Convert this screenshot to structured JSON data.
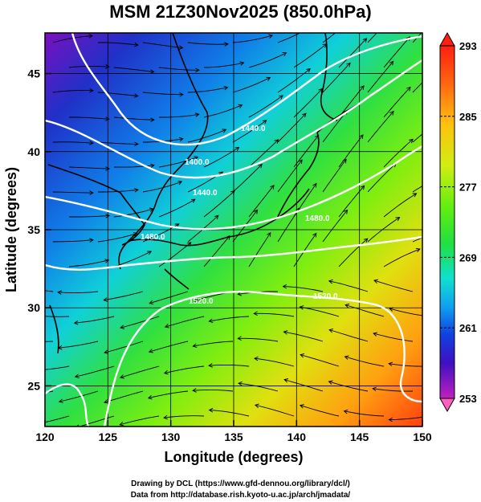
{
  "title": "MSM 21Z30Nov2025 (850.0hPa)",
  "x_axis": {
    "label": "Longitude (degrees)",
    "ticks": [
      120,
      125,
      130,
      135,
      140,
      145,
      150
    ],
    "range": [
      120,
      150
    ]
  },
  "y_axis": {
    "label": "Latitude  (degrees)",
    "ticks": [
      25,
      30,
      35,
      40,
      45
    ],
    "range": [
      22.4,
      47.6
    ]
  },
  "colorbar": {
    "ticks": [
      "253",
      "261",
      "269",
      "277",
      "285",
      "293"
    ],
    "range": [
      253,
      293
    ],
    "colors": [
      "#ff60c0",
      "#c020c0",
      "#4010c0",
      "#1040e0",
      "#10a0f0",
      "#10e0d0",
      "#20e040",
      "#60ee10",
      "#d0ee10",
      "#ffc010",
      "#ff6010",
      "#ff2010"
    ]
  },
  "contour_labels": [
    "1440.0",
    "1400.0",
    "1440.0",
    "1480.0",
    "1480.0",
    "1520.0",
    "1520.0"
  ],
  "footer": {
    "line1": "Drawing by DCL (https://www.gfd-dennou.org/library/dcl/)",
    "line2": "Data from http://database.rish.kyoto-u.ac.jp/arch/jmadata/"
  }
}
